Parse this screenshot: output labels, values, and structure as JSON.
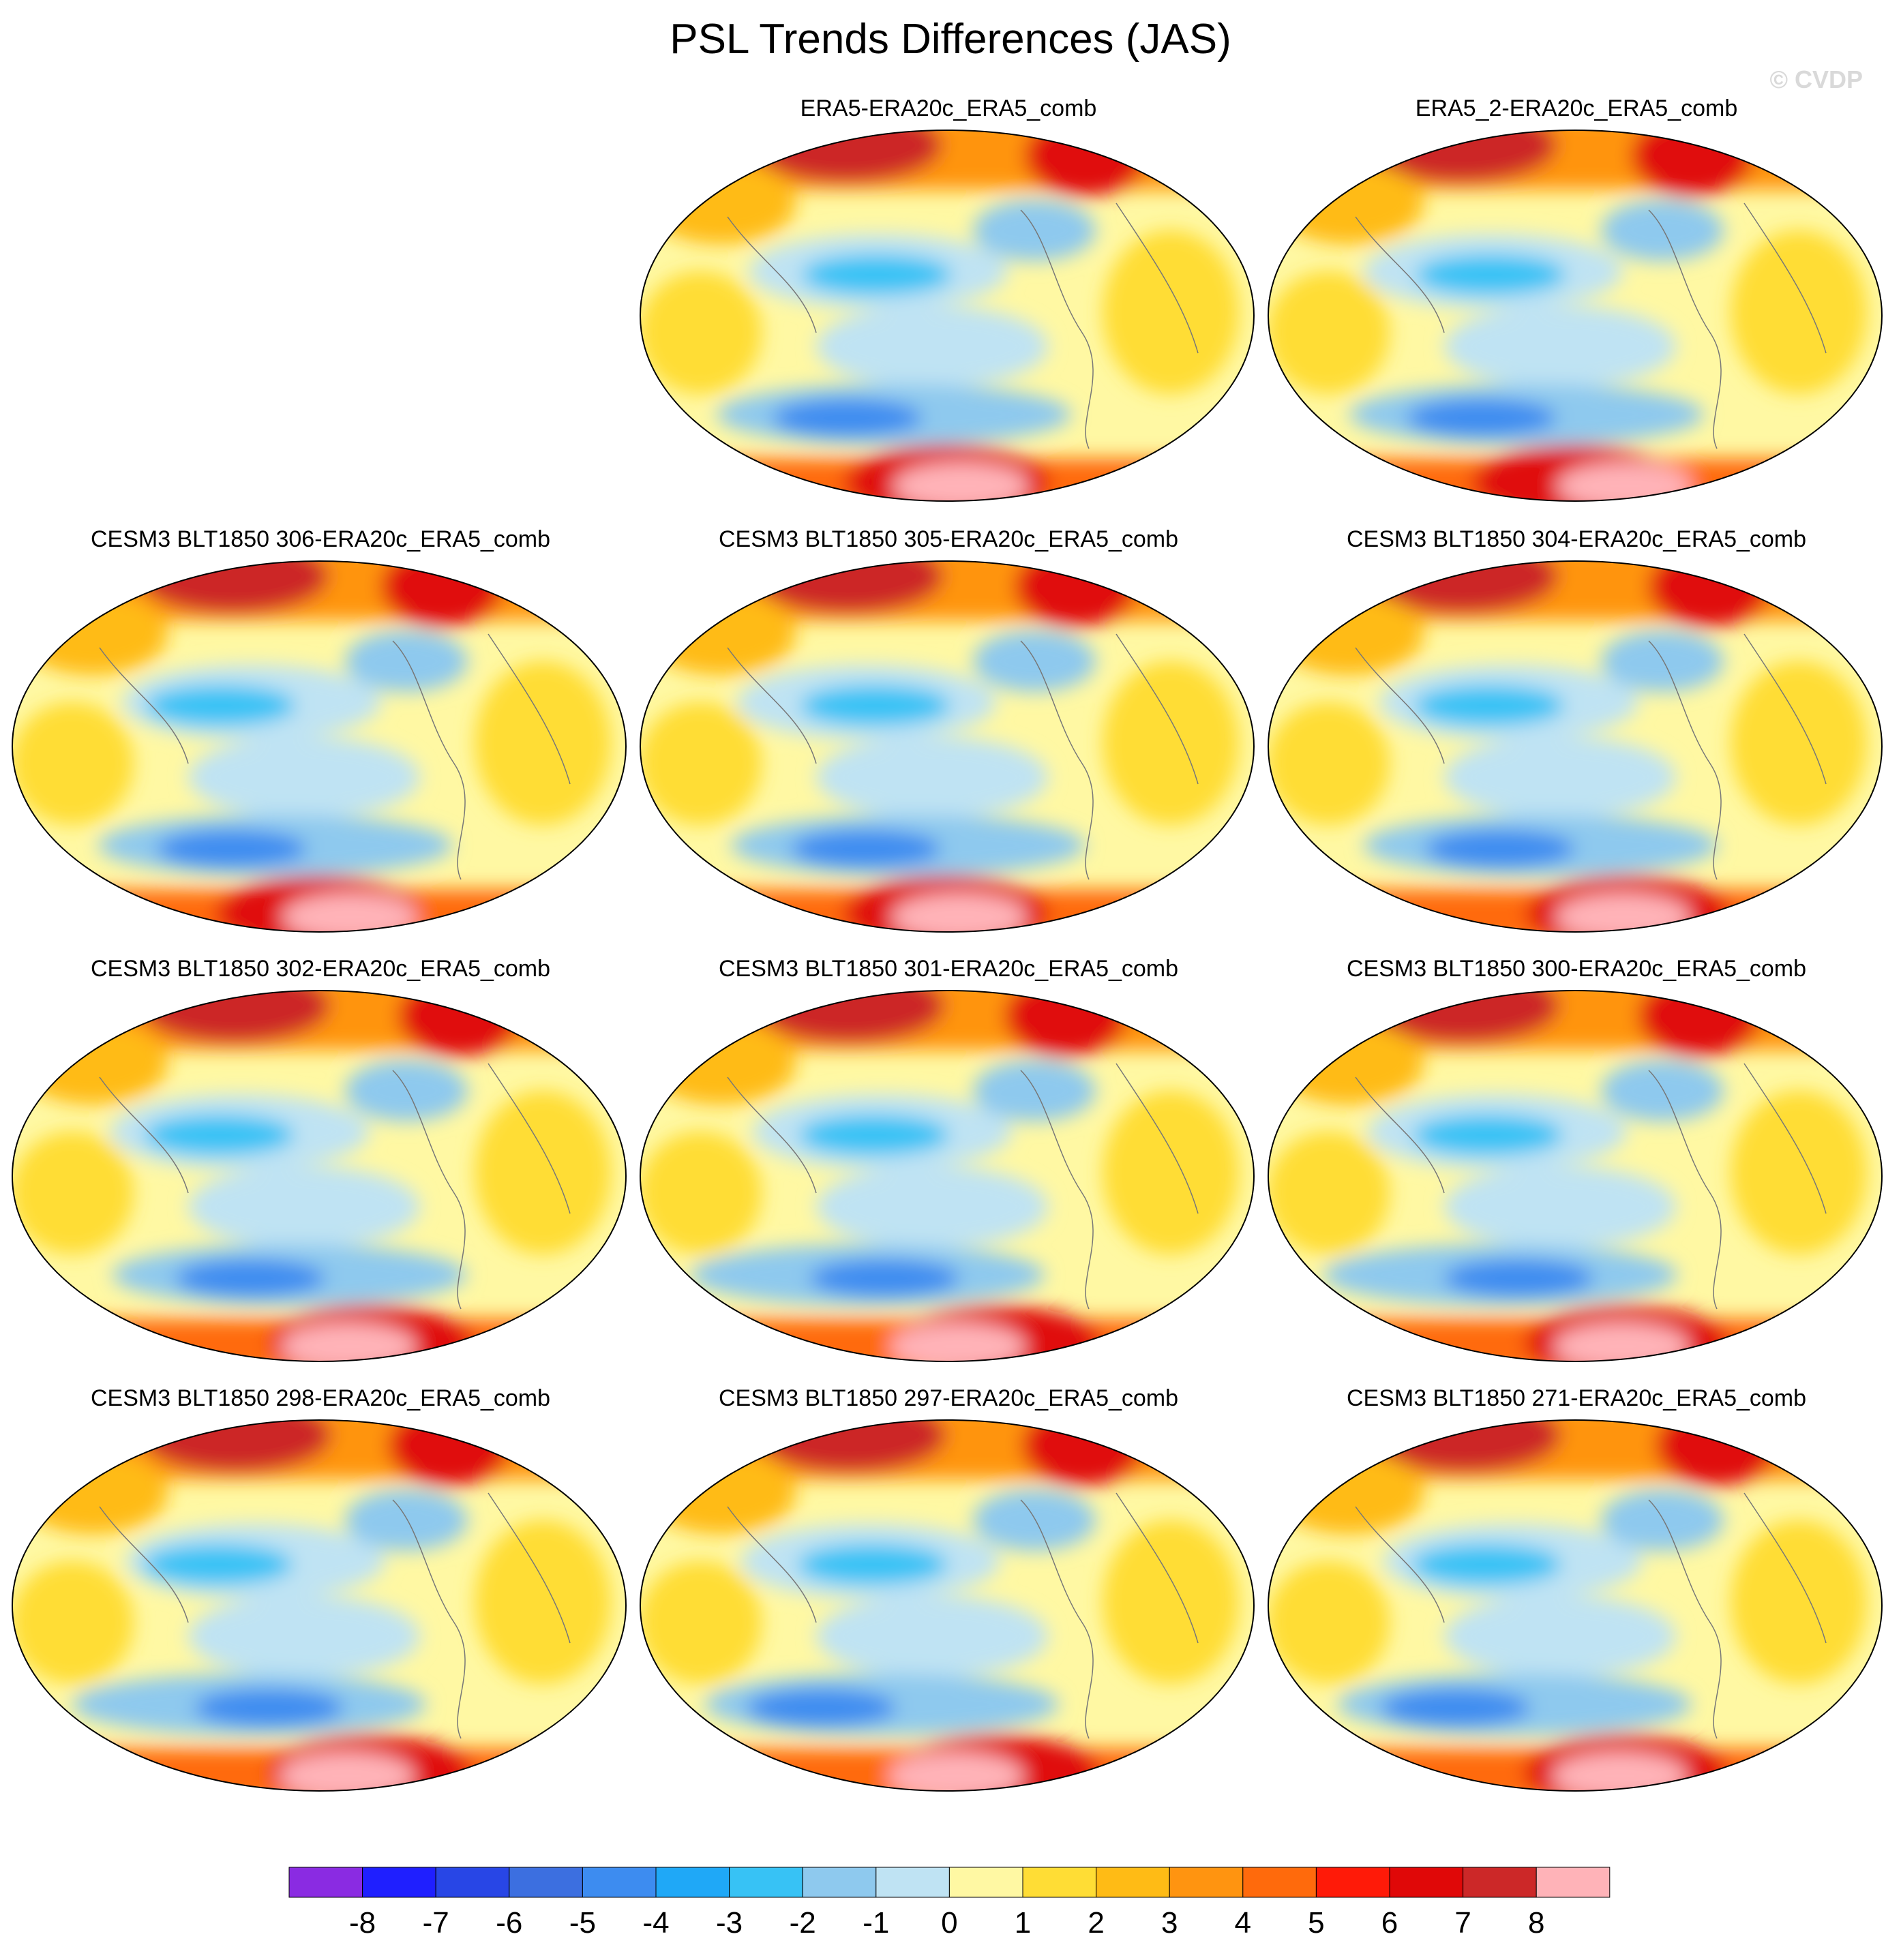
{
  "title": "PSL Trends Differences (JAS)",
  "watermark": "© CVDP",
  "panels": [
    {
      "label": "ERA5-ERA20c_ERA5_comb"
    },
    {
      "label": "ERA5_2-ERA20c_ERA5_comb"
    },
    {
      "label": "CESM3 BLT1850 306-ERA20c_ERA5_comb"
    },
    {
      "label": "CESM3 BLT1850 305-ERA20c_ERA5_comb"
    },
    {
      "label": "CESM3 BLT1850 304-ERA20c_ERA5_comb"
    },
    {
      "label": "CESM3 BLT1850 302-ERA20c_ERA5_comb"
    },
    {
      "label": "CESM3 BLT1850 301-ERA20c_ERA5_comb"
    },
    {
      "label": "CESM3 BLT1850 300-ERA20c_ERA5_comb"
    },
    {
      "label": "CESM3 BLT1850 298-ERA20c_ERA5_comb"
    },
    {
      "label": "CESM3 BLT1850 297-ERA20c_ERA5_comb"
    },
    {
      "label": "CESM3 BLT1850 271-ERA20c_ERA5_comb"
    }
  ],
  "colorbar": {
    "labels": [
      "-8",
      "-7",
      "-6",
      "-5",
      "-4",
      "-3",
      "-2",
      "-1",
      "0",
      "1",
      "2",
      "3",
      "4",
      "5",
      "6",
      "7",
      "8"
    ],
    "colors": [
      "#8a2be2",
      "#1f1fff",
      "#2846e6",
      "#3c6fe0",
      "#3d8cf0",
      "#1fa8f7",
      "#37c2f5",
      "#8ec9ee",
      "#bfe3f3",
      "#fff8a3",
      "#ffdd35",
      "#ffbb15",
      "#ff9410",
      "#ff6a0c",
      "#ff1a08",
      "#e00808",
      "#cc2828",
      "#ffb3b8"
    ]
  }
}
